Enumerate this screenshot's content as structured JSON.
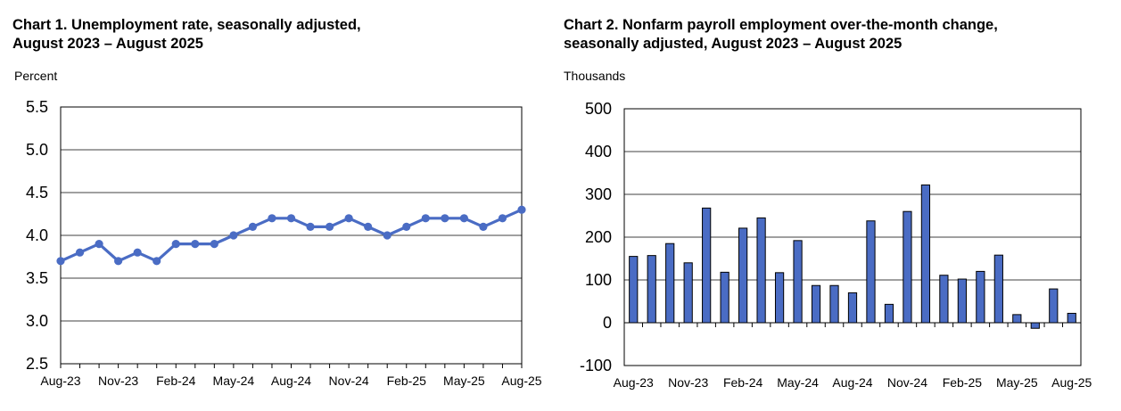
{
  "chart_data": [
    {
      "type": "line",
      "title_lines": [
        "Chart 1. Unemployment rate, seasonally adjusted,",
        "August 2023 – August 2025"
      ],
      "ylabel": "Percent",
      "ylim": [
        2.5,
        5.5
      ],
      "yticks": [
        "2.5",
        "3.0",
        "3.5",
        "4.0",
        "4.5",
        "5.0",
        "5.5"
      ],
      "xtick_labels": [
        "Aug-23",
        "Nov-23",
        "Feb-24",
        "May-24",
        "Aug-24",
        "Nov-24",
        "Feb-25",
        "May-25",
        "Aug-25"
      ],
      "x": [
        "Aug-23",
        "Sep-23",
        "Oct-23",
        "Nov-23",
        "Dec-23",
        "Jan-24",
        "Feb-24",
        "Mar-24",
        "Apr-24",
        "May-24",
        "Jun-24",
        "Jul-24",
        "Aug-24",
        "Sep-24",
        "Oct-24",
        "Nov-24",
        "Dec-24",
        "Jan-25",
        "Feb-25",
        "Mar-25",
        "Apr-25",
        "May-25",
        "Jun-25",
        "Jul-25",
        "Aug-25"
      ],
      "values": [
        3.7,
        3.8,
        3.9,
        3.7,
        3.8,
        3.7,
        3.9,
        3.9,
        3.9,
        4.0,
        4.1,
        4.2,
        4.2,
        4.1,
        4.1,
        4.2,
        4.1,
        4.0,
        4.1,
        4.2,
        4.2,
        4.2,
        4.1,
        4.2,
        4.3
      ],
      "grid": true,
      "color": "#4a6cc4"
    },
    {
      "type": "bar",
      "title_lines": [
        "Chart 2. Nonfarm payroll employment over-the-month change,",
        "seasonally adjusted, August 2023 – August 2025"
      ],
      "ylabel": "Thousands",
      "ylim": [
        -100,
        500
      ],
      "yticks": [
        "-100",
        "0",
        "100",
        "200",
        "300",
        "400",
        "500"
      ],
      "xtick_labels": [
        "Aug-23",
        "Nov-23",
        "Feb-24",
        "May-24",
        "Aug-24",
        "Nov-24",
        "Feb-25",
        "May-25",
        "Aug-25"
      ],
      "categories": [
        "Aug-23",
        "Sep-23",
        "Oct-23",
        "Nov-23",
        "Dec-23",
        "Jan-24",
        "Feb-24",
        "Mar-24",
        "Apr-24",
        "May-24",
        "Jun-24",
        "Jul-24",
        "Aug-24",
        "Sep-24",
        "Oct-24",
        "Nov-24",
        "Dec-24",
        "Jan-25",
        "Feb-25",
        "Mar-25",
        "Apr-25",
        "May-25",
        "Jun-25",
        "Jul-25",
        "Aug-25"
      ],
      "values": [
        155,
        157,
        185,
        140,
        268,
        118,
        221,
        245,
        117,
        192,
        87,
        87,
        70,
        238,
        43,
        260,
        322,
        111,
        102,
        120,
        158,
        19,
        -13,
        79,
        22
      ],
      "grid": true,
      "color": "#4a6cc4"
    }
  ]
}
